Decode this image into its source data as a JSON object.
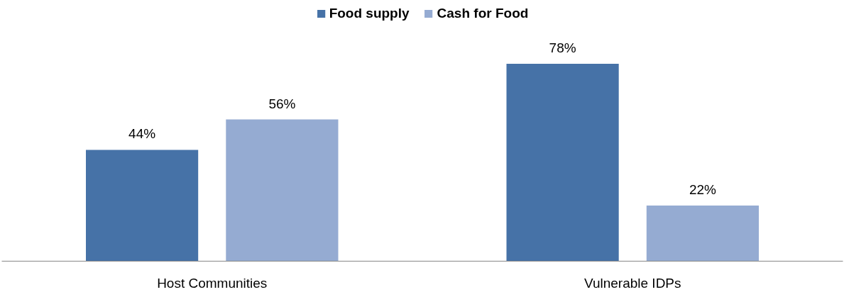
{
  "chart_data": {
    "type": "bar",
    "categories": [
      "Host Communities",
      "Vulnerable IDPs"
    ],
    "series": [
      {
        "name": "Food supply",
        "color": "#4672a7",
        "values": [
          44,
          78
        ],
        "value_labels": [
          "44%",
          "78%"
        ]
      },
      {
        "name": "Cash for Food",
        "color": "#95abd2",
        "values": [
          56,
          22
        ],
        "value_labels": [
          "56%",
          "22%"
        ]
      }
    ],
    "legend": "top"
  }
}
